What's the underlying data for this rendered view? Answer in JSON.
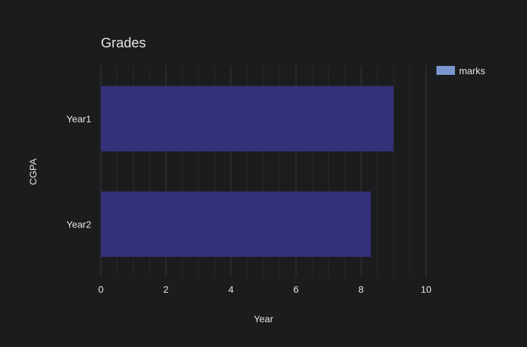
{
  "chart_data": {
    "type": "bar",
    "orientation": "horizontal",
    "title": "Grades",
    "xlabel": "Year",
    "ylabel": "CGPA",
    "categories": [
      "Year1",
      "Year2"
    ],
    "series": [
      {
        "name": "marks",
        "values": [
          9.0,
          8.3
        ],
        "color": "#35307a"
      }
    ],
    "xlim": [
      0,
      10
    ],
    "x_ticks": [
      "0",
      "2",
      "4",
      "6",
      "8",
      "10"
    ],
    "grid": true,
    "legend_position": "top-right",
    "legend_swatch_color": "#7b97d0",
    "background_color": "#1b1c1e",
    "grid_color": "#3a3a3a"
  }
}
